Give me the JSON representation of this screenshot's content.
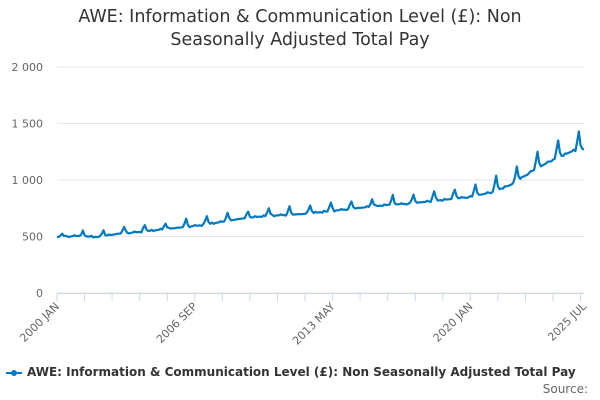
{
  "title": "AWE: Information & Communication Level (£): Non Seasonally Adjusted Total Pay",
  "title_lines": [
    "AWE: Information & Communication Level (£): Non",
    "Seasonally Adjusted Total Pay"
  ],
  "legend_label": "AWE: Information & Communication Level (£): Non Seasonally Adjusted Total Pay",
  "source_label": "Source:",
  "series_color": "#0079c1",
  "chart_data": {
    "type": "line",
    "title": "AWE: Information & Communication Level (£): Non Seasonally Adjusted Total Pay",
    "xlabel": "",
    "ylabel": "",
    "ylim": [
      0,
      2000
    ],
    "yticks": [
      0,
      500,
      1000,
      1500,
      2000
    ],
    "ytick_labels": [
      "0",
      "500",
      "1 000",
      "1 500",
      "2 000"
    ],
    "xticks": [
      "2000 JAN",
      "2006 SEP",
      "2013 MAY",
      "2020 JAN",
      "2025 JUL"
    ],
    "x_start": "2000 JAN",
    "x_end": "2025 JUL",
    "grid": true,
    "legend_position": "bottom",
    "series": [
      {
        "name": "AWE: Information & Communication Level (£): Non Seasonally Adjusted Total Pay",
        "points": [
          {
            "year": 2000.0,
            "value": 495
          },
          {
            "year": 2001.0,
            "value": 505
          },
          {
            "year": 2002.0,
            "value": 495
          },
          {
            "year": 2003.0,
            "value": 525
          },
          {
            "year": 2004.0,
            "value": 540
          },
          {
            "year": 2005.0,
            "value": 560
          },
          {
            "year": 2006.0,
            "value": 580
          },
          {
            "year": 2007.0,
            "value": 600
          },
          {
            "year": 2008.0,
            "value": 630
          },
          {
            "year": 2009.0,
            "value": 660
          },
          {
            "year": 2010.0,
            "value": 680
          },
          {
            "year": 2011.0,
            "value": 690
          },
          {
            "year": 2012.0,
            "value": 700
          },
          {
            "year": 2013.0,
            "value": 720
          },
          {
            "year": 2014.0,
            "value": 740
          },
          {
            "year": 2015.0,
            "value": 760
          },
          {
            "year": 2016.0,
            "value": 780
          },
          {
            "year": 2017.0,
            "value": 790
          },
          {
            "year": 2018.0,
            "value": 810
          },
          {
            "year": 2019.0,
            "value": 830
          },
          {
            "year": 2020.0,
            "value": 850
          },
          {
            "year": 2021.0,
            "value": 890
          },
          {
            "year": 2022.0,
            "value": 960
          },
          {
            "year": 2023.0,
            "value": 1080
          },
          {
            "year": 2024.0,
            "value": 1180
          },
          {
            "year": 2025.0,
            "value": 1260
          },
          {
            "year": 2025.5,
            "value": 1270
          }
        ],
        "annual_peaks": [
          {
            "year": 2000.25,
            "value": 525
          },
          {
            "year": 2001.25,
            "value": 545
          },
          {
            "year": 2002.25,
            "value": 555
          },
          {
            "year": 2003.25,
            "value": 585
          },
          {
            "year": 2004.25,
            "value": 600
          },
          {
            "year": 2005.25,
            "value": 620
          },
          {
            "year": 2006.25,
            "value": 650
          },
          {
            "year": 2007.25,
            "value": 680
          },
          {
            "year": 2008.25,
            "value": 710
          },
          {
            "year": 2009.25,
            "value": 720
          },
          {
            "year": 2010.25,
            "value": 750
          },
          {
            "year": 2011.25,
            "value": 760
          },
          {
            "year": 2012.25,
            "value": 780
          },
          {
            "year": 2013.25,
            "value": 800
          },
          {
            "year": 2014.25,
            "value": 810
          },
          {
            "year": 2015.25,
            "value": 830
          },
          {
            "year": 2016.25,
            "value": 860
          },
          {
            "year": 2017.25,
            "value": 870
          },
          {
            "year": 2018.25,
            "value": 900
          },
          {
            "year": 2019.25,
            "value": 920
          },
          {
            "year": 2020.25,
            "value": 960
          },
          {
            "year": 2021.25,
            "value": 1030
          },
          {
            "year": 2022.25,
            "value": 1120
          },
          {
            "year": 2023.25,
            "value": 1250
          },
          {
            "year": 2024.25,
            "value": 1350
          },
          {
            "year": 2025.25,
            "value": 1430
          }
        ]
      }
    ]
  }
}
